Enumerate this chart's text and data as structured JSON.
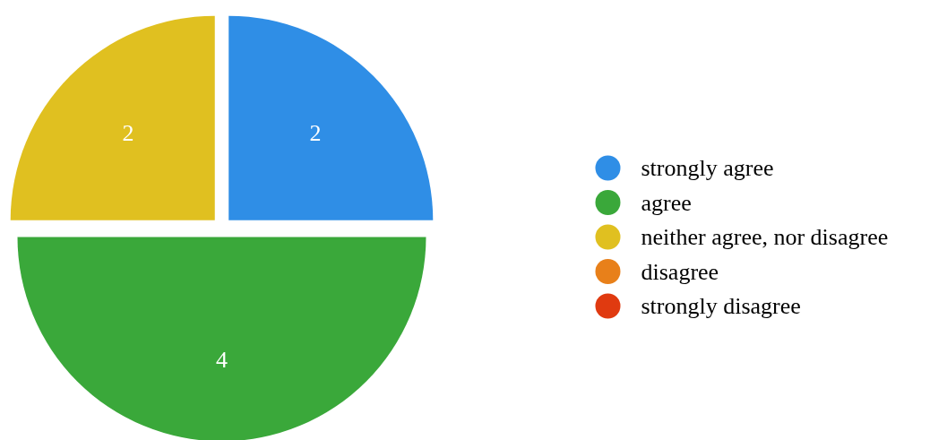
{
  "chart_data": {
    "type": "pie",
    "categories": [
      "strongly agree",
      "agree",
      "neither agree, nor disagree",
      "disagree",
      "strongly disagree"
    ],
    "values": [
      2,
      4,
      2,
      0,
      0
    ],
    "colors": [
      "#2f8ee6",
      "#3aa83a",
      "#e0c020",
      "#e8801a",
      "#e03a10"
    ],
    "data_labels": true,
    "legend": "right"
  }
}
